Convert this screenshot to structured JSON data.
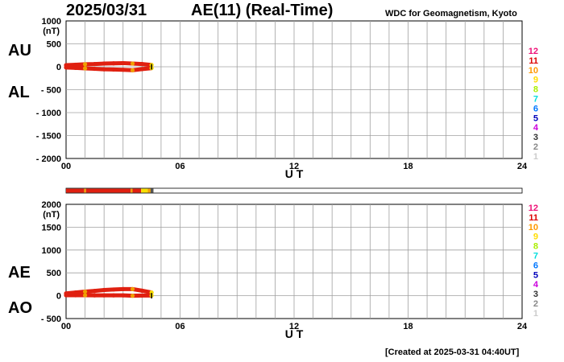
{
  "header": {
    "date": "2025/03/31",
    "title": "AE(11) (Real-Time)",
    "credit": "WDC for Geomagnetism, Kyoto"
  },
  "footer": {
    "created": "[Created at 2025-03-31 04:40UT]"
  },
  "colors": {
    "grid": "#a0a0a0",
    "data_red": "#e02010",
    "data_orange": "#f0a000",
    "data_yellow": "#f8e000",
    "data_black": "#000000",
    "band_gray": "#d8d8d8",
    "band_dark": "#555555"
  },
  "station_legend": [
    {
      "label": "12",
      "color": "#ee1177"
    },
    {
      "label": "11",
      "color": "#dd0000"
    },
    {
      "label": "10",
      "color": "#ff9900"
    },
    {
      "label": "9",
      "color": "#ffdd00"
    },
    {
      "label": "8",
      "color": "#aaee00"
    },
    {
      "label": "7",
      "color": "#00dddd"
    },
    {
      "label": "6",
      "color": "#0077ff"
    },
    {
      "label": "5",
      "color": "#0000bb"
    },
    {
      "label": "4",
      "color": "#cc00dd"
    },
    {
      "label": "3",
      "color": "#333333"
    },
    {
      "label": "2",
      "color": "#888888"
    },
    {
      "label": "1",
      "color": "#cccccc"
    }
  ],
  "coverage_band": {
    "x_range": [
      0,
      24
    ],
    "segments": [
      {
        "start": 0.0,
        "end": 0.95,
        "color": "#e02010"
      },
      {
        "start": 0.95,
        "end": 1.05,
        "color": "#f0a000"
      },
      {
        "start": 1.05,
        "end": 3.4,
        "color": "#e02010"
      },
      {
        "start": 3.4,
        "end": 3.5,
        "color": "#f0a000"
      },
      {
        "start": 3.5,
        "end": 3.95,
        "color": "#e02010"
      },
      {
        "start": 3.95,
        "end": 4.3,
        "color": "#f8e000"
      },
      {
        "start": 4.3,
        "end": 4.45,
        "color": "#f0a000"
      },
      {
        "start": 4.45,
        "end": 4.6,
        "color": "#555555"
      }
    ]
  },
  "chart_data": [
    {
      "type": "line",
      "side_labels": [
        "AU",
        "AL"
      ],
      "y_unit": "(nT)",
      "ylim": [
        -2000,
        1000
      ],
      "yticks": [
        1000,
        500,
        0,
        -500,
        -1000,
        -1500,
        -2000
      ],
      "ytick_labels": [
        "1000",
        "500",
        "0",
        "- 500",
        "- 1000",
        "- 1500",
        "- 2000"
      ],
      "xlim": [
        0,
        24
      ],
      "xticks": [
        0,
        6,
        12,
        18,
        24
      ],
      "xtick_labels": [
        "00",
        "06",
        "12",
        "18",
        "24"
      ],
      "xlabel": "U T",
      "grid": true,
      "series": [
        {
          "x": [
            0,
            0.5,
            1,
            1.5,
            2,
            2.5,
            3,
            3.5,
            4,
            4.5
          ],
          "values": [
            35,
            45,
            55,
            60,
            70,
            75,
            80,
            70,
            60,
            40
          ]
        },
        {
          "x": [
            0,
            0.5,
            1,
            1.5,
            2,
            2.5,
            3,
            3.5,
            4,
            4.5
          ],
          "values": [
            -15,
            -25,
            -35,
            -45,
            -55,
            -60,
            -65,
            -75,
            -50,
            -30
          ]
        }
      ]
    },
    {
      "type": "line",
      "side_labels": [
        "AE",
        "AO"
      ],
      "y_unit": "(nT)",
      "ylim": [
        -500,
        2000
      ],
      "yticks": [
        2000,
        1500,
        1000,
        500,
        0,
        -500
      ],
      "ytick_labels": [
        "2000",
        "1500",
        "1000",
        "500",
        "0",
        "- 500"
      ],
      "xlim": [
        0,
        24
      ],
      "xticks": [
        0,
        6,
        12,
        18,
        24
      ],
      "xtick_labels": [
        "00",
        "06",
        "12",
        "18",
        "24"
      ],
      "xlabel": "U T",
      "grid": true,
      "series": [
        {
          "x": [
            0,
            0.5,
            1,
            1.5,
            2,
            2.5,
            3,
            3.5,
            4,
            4.5
          ],
          "values": [
            50,
            70,
            90,
            105,
            125,
            135,
            145,
            145,
            110,
            70
          ]
        },
        {
          "x": [
            0,
            0.5,
            1,
            1.5,
            2,
            2.5,
            3,
            3.5,
            4,
            4.5
          ],
          "values": [
            10,
            10,
            10,
            8,
            8,
            8,
            8,
            0,
            5,
            5
          ]
        }
      ]
    }
  ]
}
